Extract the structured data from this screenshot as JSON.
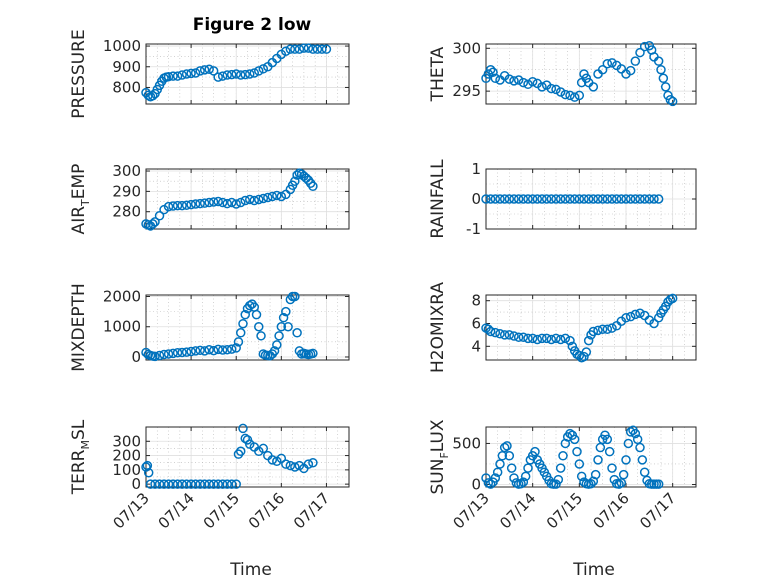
{
  "title": "Figure 2 low",
  "colors": {
    "series": "#0072BD",
    "axes": "#262626",
    "grid": "#dfdfdf"
  },
  "chart_data": [
    {
      "type": "scatter",
      "ylabel": "PRESSURE",
      "ylabel_sub": "",
      "ylim": [
        720,
        1010
      ],
      "yticks": [
        800,
        900,
        1000
      ],
      "ytick_labels": [
        "800",
        "900",
        "1000"
      ],
      "xlim": [
        0,
        4.5
      ],
      "xticks": [
        0,
        1,
        2,
        3,
        4
      ],
      "xtick_labels": [
        "07/13",
        "07/14",
        "07/15",
        "07/16",
        "07/17"
      ],
      "grid": true,
      "minor_grid": true,
      "series": [
        {
          "x": [
            0,
            0.05,
            0.1,
            0.15,
            0.2,
            0.25,
            0.3,
            0.35,
            0.4,
            0.45,
            0.5,
            0.6,
            0.7,
            0.8,
            0.9,
            1.0,
            1.1,
            1.2,
            1.3,
            1.4,
            1.5,
            1.6,
            1.7,
            1.8,
            1.9,
            2.0,
            2.1,
            2.2,
            2.3,
            2.4,
            2.5,
            2.6,
            2.7,
            2.8,
            2.9,
            3.0,
            3.1,
            3.2,
            3.3,
            3.4,
            3.5,
            3.6,
            3.7,
            3.8,
            3.9,
            4.0
          ],
          "y": [
            775,
            762,
            755,
            760,
            770,
            790,
            810,
            830,
            845,
            850,
            852,
            855,
            855,
            860,
            865,
            868,
            870,
            880,
            885,
            888,
            880,
            850,
            855,
            860,
            862,
            865,
            860,
            862,
            865,
            870,
            880,
            890,
            900,
            920,
            940,
            960,
            975,
            985,
            985,
            985,
            990,
            990,
            985,
            985,
            985,
            985
          ]
        }
      ]
    },
    {
      "type": "scatter",
      "ylabel": "THETA",
      "ylabel_sub": "",
      "ylim": [
        293.5,
        300.5
      ],
      "yticks": [
        295,
        300
      ],
      "ytick_labels": [
        "295",
        "300"
      ],
      "xlim": [
        0,
        4.5
      ],
      "xticks": [
        0,
        1,
        2,
        3,
        4
      ],
      "xtick_labels": [
        "07/13",
        "07/14",
        "07/15",
        "07/16",
        "07/17"
      ],
      "grid": true,
      "minor_grid": true,
      "series": [
        {
          "x": [
            0,
            0.05,
            0.1,
            0.15,
            0.2,
            0.3,
            0.4,
            0.5,
            0.6,
            0.7,
            0.8,
            0.9,
            1.0,
            1.1,
            1.2,
            1.3,
            1.4,
            1.5,
            1.6,
            1.7,
            1.8,
            1.9,
            2.0,
            2.05,
            2.1,
            2.15,
            2.2,
            2.3,
            2.4,
            2.5,
            2.6,
            2.7,
            2.8,
            2.9,
            3.0,
            3.1,
            3.2,
            3.3,
            3.4,
            3.5,
            3.55,
            3.6,
            3.7,
            3.75,
            3.8,
            3.85,
            3.9,
            3.95,
            4.0
          ],
          "y": [
            296.5,
            297.0,
            297.5,
            297.2,
            296.5,
            296.3,
            296.8,
            296.4,
            296.2,
            296.3,
            296.0,
            295.8,
            296.1,
            295.9,
            295.5,
            295.7,
            295.3,
            295.2,
            294.9,
            294.6,
            294.5,
            294.3,
            294.5,
            296.0,
            297.0,
            296.5,
            296.0,
            295.5,
            297.0,
            297.5,
            298.2,
            298.3,
            298.0,
            297.6,
            297.0,
            297.4,
            298.5,
            299.5,
            300.2,
            300.3,
            299.8,
            299.0,
            298.5,
            297.5,
            296.5,
            295.5,
            294.5,
            294.0,
            293.8
          ]
        }
      ]
    },
    {
      "type": "scatter",
      "ylabel": "AIR",
      "ylabel_sub": "T",
      "ylabel_after": "EMP",
      "ylim": [
        271.5,
        301
      ],
      "yticks": [
        280,
        290,
        300
      ],
      "ytick_labels": [
        "280",
        "290",
        "300"
      ],
      "xlim": [
        0,
        4.5
      ],
      "xticks": [
        0,
        1,
        2,
        3,
        4
      ],
      "xtick_labels": [
        "07/13",
        "07/14",
        "07/15",
        "07/16",
        "07/17"
      ],
      "grid": true,
      "minor_grid": true,
      "series": [
        {
          "x": [
            0,
            0.05,
            0.1,
            0.15,
            0.2,
            0.3,
            0.4,
            0.5,
            0.6,
            0.7,
            0.8,
            0.9,
            1.0,
            1.1,
            1.2,
            1.3,
            1.4,
            1.5,
            1.6,
            1.7,
            1.8,
            1.9,
            2.0,
            2.1,
            2.2,
            2.3,
            2.4,
            2.5,
            2.6,
            2.7,
            2.8,
            2.9,
            3.0,
            3.1,
            3.2,
            3.25,
            3.3,
            3.35,
            3.4,
            3.45,
            3.5,
            3.55,
            3.6,
            3.65,
            3.7
          ],
          "y": [
            274,
            273.5,
            273,
            274,
            275,
            278,
            281,
            282.5,
            282.8,
            283,
            283,
            283.2,
            283.5,
            283.8,
            284,
            284.2,
            284.5,
            284.8,
            285,
            284.5,
            284,
            284.5,
            283.8,
            284.5,
            285.5,
            286,
            285.5,
            286,
            286.5,
            287,
            287.5,
            288,
            287.5,
            288.5,
            291,
            293,
            295,
            298,
            299,
            298.5,
            297.5,
            296.5,
            295.5,
            294,
            292.5
          ]
        }
      ]
    },
    {
      "type": "scatter",
      "ylabel": "RAINFALL",
      "ylabel_sub": "",
      "ylim": [
        -1,
        1
      ],
      "yticks": [
        -1,
        0,
        1
      ],
      "ytick_labels": [
        "-1",
        "0",
        "1"
      ],
      "xlim": [
        0,
        4.5
      ],
      "xticks": [
        0,
        1,
        2,
        3,
        4
      ],
      "xtick_labels": [
        "07/13",
        "07/14",
        "07/15",
        "07/16",
        "07/17"
      ],
      "grid": true,
      "minor_grid": true,
      "series": [
        {
          "x": [
            0,
            0.1,
            0.2,
            0.3,
            0.4,
            0.5,
            0.6,
            0.7,
            0.8,
            0.9,
            1.0,
            1.1,
            1.2,
            1.3,
            1.4,
            1.5,
            1.6,
            1.7,
            1.8,
            1.9,
            2.0,
            2.1,
            2.2,
            2.3,
            2.4,
            2.5,
            2.6,
            2.7,
            2.8,
            2.9,
            3.0,
            3.1,
            3.2,
            3.3,
            3.4,
            3.5,
            3.6,
            3.7
          ],
          "y": [
            0,
            0,
            0,
            0,
            0,
            0,
            0,
            0,
            0,
            0,
            0,
            0,
            0,
            0,
            0,
            0,
            0,
            0,
            0,
            0,
            0,
            0,
            0,
            0,
            0,
            0,
            0,
            0,
            0,
            0,
            0,
            0,
            0,
            0,
            0,
            0,
            0,
            0
          ]
        }
      ]
    },
    {
      "type": "scatter",
      "ylabel": "MIXDEPTH",
      "ylabel_sub": "",
      "ylim": [
        -100,
        2050
      ],
      "yticks": [
        0,
        1000,
        2000
      ],
      "ytick_labels": [
        "0",
        "1000",
        "2000"
      ],
      "xlim": [
        0,
        4.5
      ],
      "xticks": [
        0,
        1,
        2,
        3,
        4
      ],
      "xtick_labels": [
        "07/13",
        "07/14",
        "07/15",
        "07/16",
        "07/17"
      ],
      "grid": true,
      "minor_grid": true,
      "series": [
        {
          "x": [
            0,
            0.05,
            0.1,
            0.15,
            0.2,
            0.3,
            0.4,
            0.5,
            0.6,
            0.7,
            0.8,
            0.9,
            1.0,
            1.1,
            1.2,
            1.3,
            1.4,
            1.5,
            1.6,
            1.7,
            1.8,
            1.9,
            2.0,
            2.05,
            2.1,
            2.15,
            2.2,
            2.25,
            2.3,
            2.35,
            2.4,
            2.45,
            2.5,
            2.55,
            2.6,
            2.65,
            2.7,
            2.75,
            2.8,
            2.85,
            2.9,
            2.95,
            3.0,
            3.05,
            3.1,
            3.15,
            3.2,
            3.25,
            3.3,
            3.35,
            3.4,
            3.45,
            3.5,
            3.55,
            3.6,
            3.65,
            3.7
          ],
          "y": [
            150,
            80,
            50,
            30,
            20,
            50,
            80,
            100,
            120,
            140,
            150,
            160,
            180,
            200,
            220,
            200,
            240,
            210,
            250,
            230,
            240,
            260,
            300,
            500,
            800,
            1100,
            1400,
            1600,
            1700,
            1750,
            1650,
            1400,
            1000,
            700,
            100,
            60,
            50,
            40,
            100,
            200,
            400,
            700,
            1000,
            1300,
            1500,
            1000,
            1900,
            2000,
            2000,
            800,
            200,
            100,
            120,
            100,
            80,
            100,
            120
          ]
        }
      ]
    },
    {
      "type": "scatter",
      "ylabel": "H2OMIXRA",
      "ylabel_sub": "",
      "ylim": [
        2.8,
        8.5
      ],
      "yticks": [
        4,
        6,
        8
      ],
      "ytick_labels": [
        "4",
        "6",
        "8"
      ],
      "xlim": [
        0,
        4.5
      ],
      "xticks": [
        0,
        1,
        2,
        3,
        4
      ],
      "xtick_labels": [
        "07/13",
        "07/14",
        "07/15",
        "07/16",
        "07/17"
      ],
      "grid": true,
      "minor_grid": true,
      "series": [
        {
          "x": [
            0,
            0.05,
            0.1,
            0.2,
            0.3,
            0.4,
            0.5,
            0.6,
            0.7,
            0.8,
            0.9,
            1.0,
            1.1,
            1.2,
            1.3,
            1.4,
            1.5,
            1.6,
            1.7,
            1.8,
            1.85,
            1.9,
            1.95,
            2.0,
            2.05,
            2.1,
            2.15,
            2.2,
            2.25,
            2.3,
            2.4,
            2.5,
            2.6,
            2.7,
            2.8,
            2.9,
            3.0,
            3.1,
            3.2,
            3.3,
            3.4,
            3.5,
            3.6,
            3.7,
            3.75,
            3.8,
            3.85,
            3.9,
            3.95,
            4.0
          ],
          "y": [
            5.6,
            5.5,
            5.3,
            5.2,
            5.1,
            5.0,
            5.0,
            4.9,
            4.8,
            4.8,
            4.7,
            4.7,
            4.6,
            4.7,
            4.7,
            4.6,
            4.7,
            4.6,
            4.7,
            4.5,
            4.0,
            3.6,
            3.3,
            3.2,
            3.0,
            3.1,
            3.5,
            4.5,
            5.0,
            5.3,
            5.4,
            5.5,
            5.5,
            5.6,
            5.8,
            6.2,
            6.5,
            6.6,
            6.8,
            6.9,
            6.7,
            6.3,
            6.0,
            6.5,
            6.9,
            7.2,
            7.5,
            7.9,
            8.1,
            8.2
          ]
        }
      ]
    },
    {
      "type": "scatter",
      "ylabel": "TERR",
      "ylabel_sub": "M",
      "ylabel_after": "SL",
      "ylim": [
        -20,
        400
      ],
      "yticks": [
        0,
        100,
        200,
        300
      ],
      "ytick_labels": [
        "0",
        "100",
        "200",
        "300"
      ],
      "xlim": [
        0,
        4.5
      ],
      "xticks": [
        0,
        1,
        2,
        3,
        4
      ],
      "xtick_labels": [
        "07/13",
        "07/14",
        "07/15",
        "07/16",
        "07/17"
      ],
      "grid": true,
      "minor_grid": true,
      "series": [
        {
          "x": [
            0,
            0.03,
            0.06,
            0.1,
            0.2,
            0.3,
            0.4,
            0.5,
            0.6,
            0.7,
            0.8,
            0.9,
            1.0,
            1.1,
            1.2,
            1.3,
            1.4,
            1.5,
            1.6,
            1.7,
            1.8,
            1.9,
            2.0,
            2.05,
            2.1,
            2.15,
            2.2,
            2.25,
            2.3,
            2.4,
            2.5,
            2.6,
            2.7,
            2.8,
            2.9,
            3.0,
            3.1,
            3.2,
            3.3,
            3.4,
            3.5,
            3.6,
            3.7
          ],
          "y": [
            120,
            130,
            80,
            0,
            0,
            0,
            0,
            0,
            0,
            0,
            0,
            0,
            0,
            0,
            0,
            0,
            0,
            0,
            0,
            0,
            0,
            0,
            0,
            210,
            230,
            390,
            320,
            310,
            280,
            260,
            230,
            250,
            200,
            170,
            160,
            180,
            140,
            130,
            120,
            130,
            110,
            140,
            150
          ]
        }
      ]
    },
    {
      "type": "scatter",
      "ylabel": "SUN",
      "ylabel_sub": "F",
      "ylabel_after": "LUX",
      "ylim": [
        -30,
        700
      ],
      "yticks": [
        0,
        500
      ],
      "ytick_labels": [
        "0",
        "500"
      ],
      "xlim": [
        0,
        4.5
      ],
      "xticks": [
        0,
        1,
        2,
        3,
        4
      ],
      "xtick_labels": [
        "07/13",
        "07/14",
        "07/15",
        "07/16",
        "07/17"
      ],
      "grid": true,
      "minor_grid": true,
      "series": [
        {
          "x": [
            0,
            0.05,
            0.1,
            0.15,
            0.2,
            0.25,
            0.3,
            0.35,
            0.4,
            0.45,
            0.5,
            0.55,
            0.6,
            0.65,
            0.7,
            0.75,
            0.8,
            0.85,
            0.9,
            0.95,
            1.0,
            1.05,
            1.1,
            1.15,
            1.2,
            1.25,
            1.3,
            1.35,
            1.4,
            1.45,
            1.5,
            1.55,
            1.6,
            1.65,
            1.7,
            1.75,
            1.8,
            1.85,
            1.9,
            1.95,
            2.0,
            2.05,
            2.1,
            2.15,
            2.2,
            2.25,
            2.3,
            2.35,
            2.4,
            2.45,
            2.5,
            2.55,
            2.6,
            2.65,
            2.7,
            2.75,
            2.8,
            2.85,
            2.9,
            2.95,
            3.0,
            3.05,
            3.1,
            3.15,
            3.2,
            3.25,
            3.3,
            3.35,
            3.4,
            3.45,
            3.5,
            3.55,
            3.6,
            3.65,
            3.7
          ],
          "y": [
            80,
            20,
            5,
            30,
            80,
            150,
            250,
            350,
            450,
            470,
            350,
            200,
            80,
            20,
            5,
            10,
            30,
            100,
            200,
            300,
            350,
            400,
            300,
            250,
            200,
            150,
            100,
            50,
            10,
            5,
            5,
            60,
            200,
            350,
            500,
            580,
            620,
            600,
            550,
            400,
            250,
            100,
            30,
            10,
            5,
            10,
            40,
            120,
            300,
            450,
            550,
            600,
            550,
            400,
            200,
            60,
            10,
            5,
            20,
            120,
            300,
            500,
            640,
            660,
            620,
            550,
            450,
            300,
            150,
            50,
            10,
            5,
            5,
            5,
            5
          ]
        }
      ]
    }
  ]
}
